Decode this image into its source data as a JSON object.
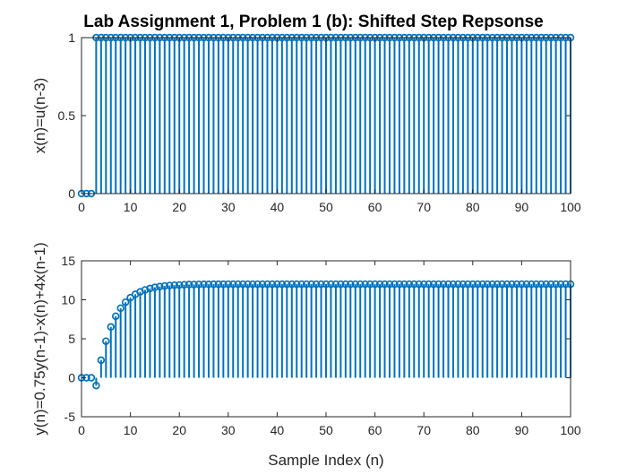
{
  "colors": {
    "series": "#0072BD",
    "axes": "#262626",
    "background": "#ffffff"
  },
  "chart_data": [
    {
      "type": "stem",
      "title": "Lab Assignment 1, Problem 1 (b): Shifted Step Repsonse",
      "xlabel": "",
      "ylabel": "x(n)=u(n-3)",
      "xlim": [
        0,
        100
      ],
      "ylim": [
        0,
        1
      ],
      "xticks": [
        0,
        10,
        20,
        30,
        40,
        50,
        60,
        70,
        80,
        90,
        100
      ],
      "yticks": [
        0,
        0.5,
        1
      ],
      "xtick_labels": [
        "0",
        "10",
        "20",
        "30",
        "40",
        "50",
        "60",
        "70",
        "80",
        "90",
        "100"
      ],
      "ytick_labels": [
        "0",
        "0.5",
        "1"
      ],
      "grid": false,
      "x": [
        0,
        1,
        2,
        3,
        4,
        5,
        6,
        7,
        8,
        9,
        10,
        11,
        12,
        13,
        14,
        15,
        16,
        17,
        18,
        19,
        20,
        21,
        22,
        23,
        24,
        25,
        26,
        27,
        28,
        29,
        30,
        31,
        32,
        33,
        34,
        35,
        36,
        37,
        38,
        39,
        40,
        41,
        42,
        43,
        44,
        45,
        46,
        47,
        48,
        49,
        50,
        51,
        52,
        53,
        54,
        55,
        56,
        57,
        58,
        59,
        60,
        61,
        62,
        63,
        64,
        65,
        66,
        67,
        68,
        69,
        70,
        71,
        72,
        73,
        74,
        75,
        76,
        77,
        78,
        79,
        80,
        81,
        82,
        83,
        84,
        85,
        86,
        87,
        88,
        89,
        90,
        91,
        92,
        93,
        94,
        95,
        96,
        97,
        98,
        99,
        100
      ],
      "values": [
        0,
        0,
        0,
        1,
        1,
        1,
        1,
        1,
        1,
        1,
        1,
        1,
        1,
        1,
        1,
        1,
        1,
        1,
        1,
        1,
        1,
        1,
        1,
        1,
        1,
        1,
        1,
        1,
        1,
        1,
        1,
        1,
        1,
        1,
        1,
        1,
        1,
        1,
        1,
        1,
        1,
        1,
        1,
        1,
        1,
        1,
        1,
        1,
        1,
        1,
        1,
        1,
        1,
        1,
        1,
        1,
        1,
        1,
        1,
        1,
        1,
        1,
        1,
        1,
        1,
        1,
        1,
        1,
        1,
        1,
        1,
        1,
        1,
        1,
        1,
        1,
        1,
        1,
        1,
        1,
        1,
        1,
        1,
        1,
        1,
        1,
        1,
        1,
        1,
        1,
        1,
        1,
        1,
        1,
        1,
        1,
        1,
        1,
        1,
        1,
        1
      ]
    },
    {
      "type": "stem",
      "title": "",
      "xlabel": "Sample Index (n)",
      "ylabel": "y(n)=0.75y(n-1)-x(n)+4x(n-1)",
      "xlim": [
        0,
        100
      ],
      "ylim": [
        -5,
        15
      ],
      "xticks": [
        0,
        10,
        20,
        30,
        40,
        50,
        60,
        70,
        80,
        90,
        100
      ],
      "yticks": [
        -5,
        0,
        5,
        10,
        15
      ],
      "xtick_labels": [
        "0",
        "10",
        "20",
        "30",
        "40",
        "50",
        "60",
        "70",
        "80",
        "90",
        "100"
      ],
      "ytick_labels": [
        "-5",
        "0",
        "5",
        "10",
        "15"
      ],
      "grid": false,
      "x": [
        0,
        1,
        2,
        3,
        4,
        5,
        6,
        7,
        8,
        9,
        10,
        11,
        12,
        13,
        14,
        15,
        16,
        17,
        18,
        19,
        20,
        21,
        22,
        23,
        24,
        25,
        26,
        27,
        28,
        29,
        30,
        31,
        32,
        33,
        34,
        35,
        36,
        37,
        38,
        39,
        40,
        41,
        42,
        43,
        44,
        45,
        46,
        47,
        48,
        49,
        50,
        51,
        52,
        53,
        54,
        55,
        56,
        57,
        58,
        59,
        60,
        61,
        62,
        63,
        64,
        65,
        66,
        67,
        68,
        69,
        70,
        71,
        72,
        73,
        74,
        75,
        76,
        77,
        78,
        79,
        80,
        81,
        82,
        83,
        84,
        85,
        86,
        87,
        88,
        89,
        90,
        91,
        92,
        93,
        94,
        95,
        96,
        97,
        98,
        99,
        100
      ],
      "values": [
        0,
        0,
        0,
        -1,
        2.25,
        4.69,
        6.52,
        7.89,
        8.92,
        9.69,
        10.27,
        10.7,
        11.02,
        11.27,
        11.45,
        11.59,
        11.69,
        11.77,
        11.83,
        11.87,
        11.9,
        11.93,
        11.95,
        11.96,
        11.97,
        11.98,
        11.98,
        11.99,
        11.99,
        11.99,
        12,
        12,
        12,
        12,
        12,
        12,
        12,
        12,
        12,
        12,
        12,
        12,
        12,
        12,
        12,
        12,
        12,
        12,
        12,
        12,
        12,
        12,
        12,
        12,
        12,
        12,
        12,
        12,
        12,
        12,
        12,
        12,
        12,
        12,
        12,
        12,
        12,
        12,
        12,
        12,
        12,
        12,
        12,
        12,
        12,
        12,
        12,
        12,
        12,
        12,
        12,
        12,
        12,
        12,
        12,
        12,
        12,
        12,
        12,
        12,
        12,
        12,
        12,
        12,
        12,
        12,
        12,
        12,
        12,
        12,
        12
      ]
    }
  ]
}
